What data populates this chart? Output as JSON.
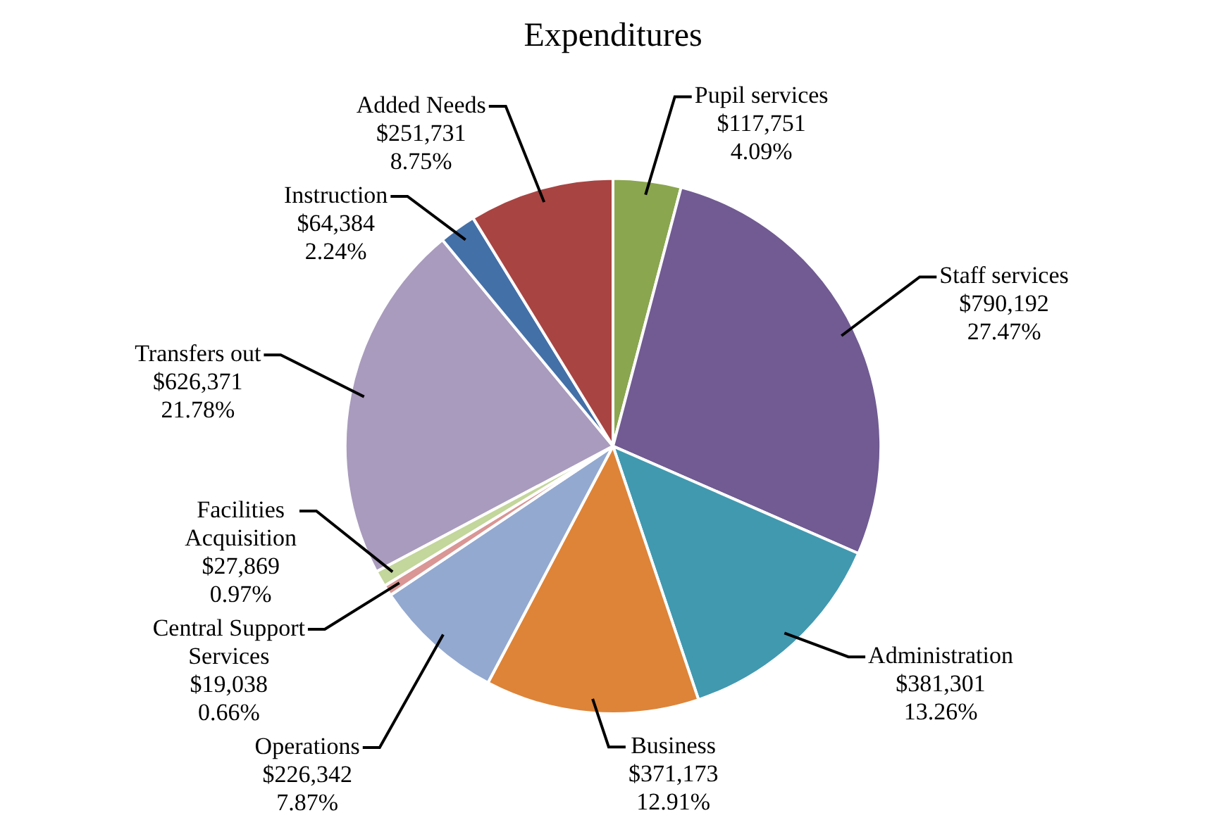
{
  "chart_data": {
    "type": "pie",
    "title": "Expenditures",
    "categories": [
      "Pupil services",
      "Staff services",
      "Administration",
      "Business",
      "Operations",
      "Central Support Services",
      "Facilities Acquisition",
      "Transfers out",
      "Instruction",
      "Added Needs"
    ],
    "values": [
      117751,
      790192,
      381301,
      371173,
      226342,
      19038,
      27869,
      626371,
      64384,
      251731
    ],
    "value_labels": [
      "$117,751\n4.09%",
      "$790,192\n27.47%",
      "$381,301\n13.26%",
      "$371,173\n12.91%",
      "$226,342\n7.87%",
      "$19,038\n0.66%",
      "$27,869\n0.97%",
      "$626,371\n21.78%",
      "$64,384\n2.24%",
      "$251,731\n8.75%"
    ],
    "colors": [
      "#8aa64f",
      "#715b92",
      "#4199b0",
      "#dd8439",
      "#93a9d0",
      "#d99694",
      "#c3d69b",
      "#a99bbd",
      "#4470a8",
      "#a84442"
    ],
    "legend": false
  }
}
